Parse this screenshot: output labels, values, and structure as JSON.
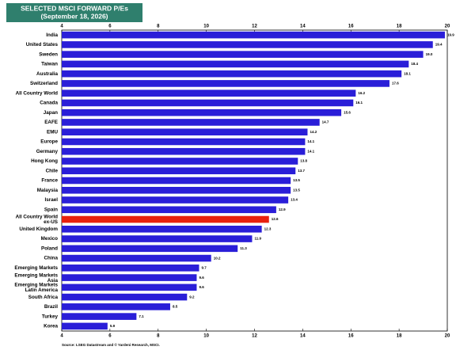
{
  "chart_data": {
    "type": "bar",
    "orientation": "horizontal",
    "title": "SELECTED MSCI FORWARD P/Es",
    "subtitle": "(September 18, 2026)",
    "source": "Source: LSEG Datastream and © Yardeni Research, MSCI.",
    "categories": [
      "India",
      "United States",
      "Sweden",
      "Taiwan",
      "Australia",
      "Switzerland",
      "All Country World",
      "Canada",
      "Japan",
      "EAFE",
      "EMU",
      "Europe",
      "Germany",
      "Hong Kong",
      "Chile",
      "France",
      "Malaysia",
      "Israel",
      "Spain",
      [
        "All Country World",
        "ex-US"
      ],
      "United Kingdom",
      "Mexico",
      "Poland",
      "China",
      "Emerging Markets",
      [
        "Emerging Markets",
        "Asia"
      ],
      [
        "Emerging Markets",
        "Latin America"
      ],
      "South Africa",
      "Brazil",
      "Turkey",
      "Korea"
    ],
    "values": [
      19.9,
      19.4,
      19.0,
      18.4,
      18.1,
      17.6,
      16.2,
      16.1,
      15.6,
      14.7,
      14.2,
      14.1,
      14.1,
      13.8,
      13.7,
      13.5,
      13.5,
      13.4,
      12.9,
      12.6,
      12.3,
      11.9,
      11.3,
      10.2,
      9.7,
      9.6,
      9.6,
      9.2,
      8.5,
      7.1,
      5.9
    ],
    "value_labels": [
      "19.9",
      "19.4",
      "19.0",
      "18.4",
      "18.1",
      "17.6",
      "16.2",
      "16.1",
      "15.6",
      "14.7",
      "14.2",
      "14.1",
      "14.1",
      "13.8",
      "13.7",
      "13.5",
      "13.5",
      "13.4",
      "12.9",
      "12.6",
      "12.3",
      "11.9",
      "11.3",
      "10.2",
      "9.7",
      "9.6",
      "9.6",
      "9.2",
      "8.5",
      "7.1",
      "5.9"
    ],
    "colors": [
      "#2a1ed8",
      "#2a1ed8",
      "#2a1ed8",
      "#2a1ed8",
      "#2a1ed8",
      "#2a1ed8",
      "#2a1ed8",
      "#2a1ed8",
      "#2a1ed8",
      "#2a1ed8",
      "#2a1ed8",
      "#2a1ed8",
      "#2a1ed8",
      "#2a1ed8",
      "#2a1ed8",
      "#2a1ed8",
      "#2a1ed8",
      "#2a1ed8",
      "#2a1ed8",
      "#e8200e",
      "#2a1ed8",
      "#2a1ed8",
      "#2a1ed8",
      "#2a1ed8",
      "#2a1ed8",
      "#2a1ed8",
      "#2a1ed8",
      "#2a1ed8",
      "#2a1ed8",
      "#2a1ed8",
      "#2a1ed8"
    ],
    "xlim": [
      4,
      20
    ],
    "xticks": [
      4,
      6,
      8,
      10,
      12,
      14,
      16,
      18,
      20
    ],
    "grid": false
  }
}
